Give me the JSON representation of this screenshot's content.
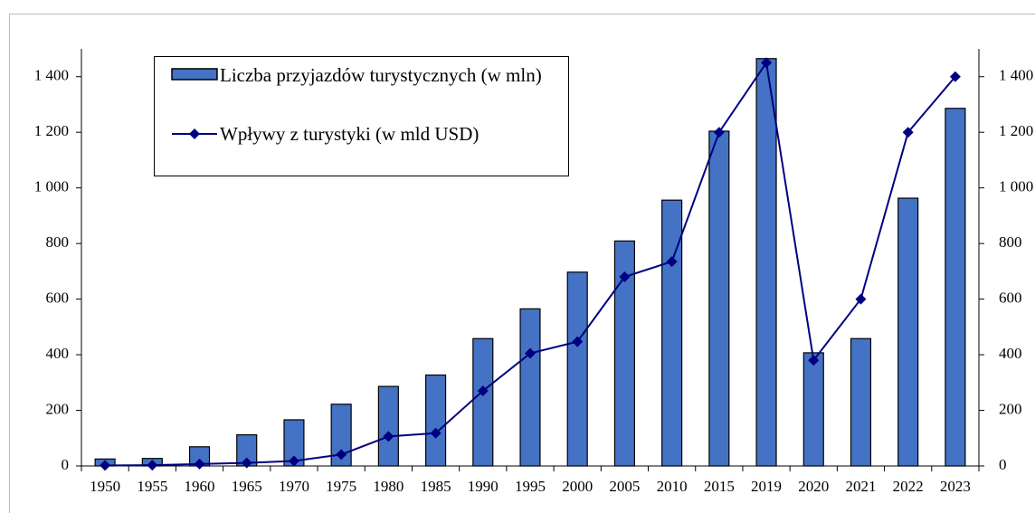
{
  "chart_data": {
    "type": "bar_line",
    "categories": [
      "1950",
      "1955",
      "1960",
      "1965",
      "1970",
      "1975",
      "1980",
      "1985",
      "1990",
      "1995",
      "2000",
      "2005",
      "2010",
      "2015",
      "2019",
      "2020",
      "2021",
      "2022",
      "2023"
    ],
    "series": [
      {
        "name": "Liczba przyjazdów turystycznych (w mln)",
        "type": "bar",
        "color": "#4472c4",
        "values": [
          25,
          27,
          69,
          112,
          166,
          222,
          286,
          327,
          458,
          565,
          697,
          809,
          956,
          1204,
          1465,
          407,
          458,
          963,
          1286
        ]
      },
      {
        "name": "Wpływy z turystyki (w mld USD)",
        "type": "line",
        "axis": "y2",
        "color": "#000080",
        "values": [
          2,
          3,
          7,
          11,
          18,
          41,
          106,
          118,
          270,
          405,
          447,
          680,
          735,
          1200,
          1450,
          380,
          600,
          1200,
          1400
        ]
      }
    ],
    "ylim": [
      0,
      1500
    ],
    "yticks": [
      0,
      200,
      400,
      600,
      800,
      {
        "value": 1000,
        "label": "1 000"
      },
      {
        "value": 1200,
        "label": "1 200"
      },
      {
        "value": 1400,
        "label": "1 400"
      }
    ],
    "y2lim": [
      0,
      1500
    ],
    "y2ticks": [
      0,
      200,
      400,
      600,
      800,
      {
        "value": 1000,
        "label": "1 000"
      },
      {
        "value": 1200,
        "label": "1 200"
      },
      {
        "value": 1400,
        "label": "1 400"
      }
    ],
    "legend": "top-left",
    "grid": false
  }
}
